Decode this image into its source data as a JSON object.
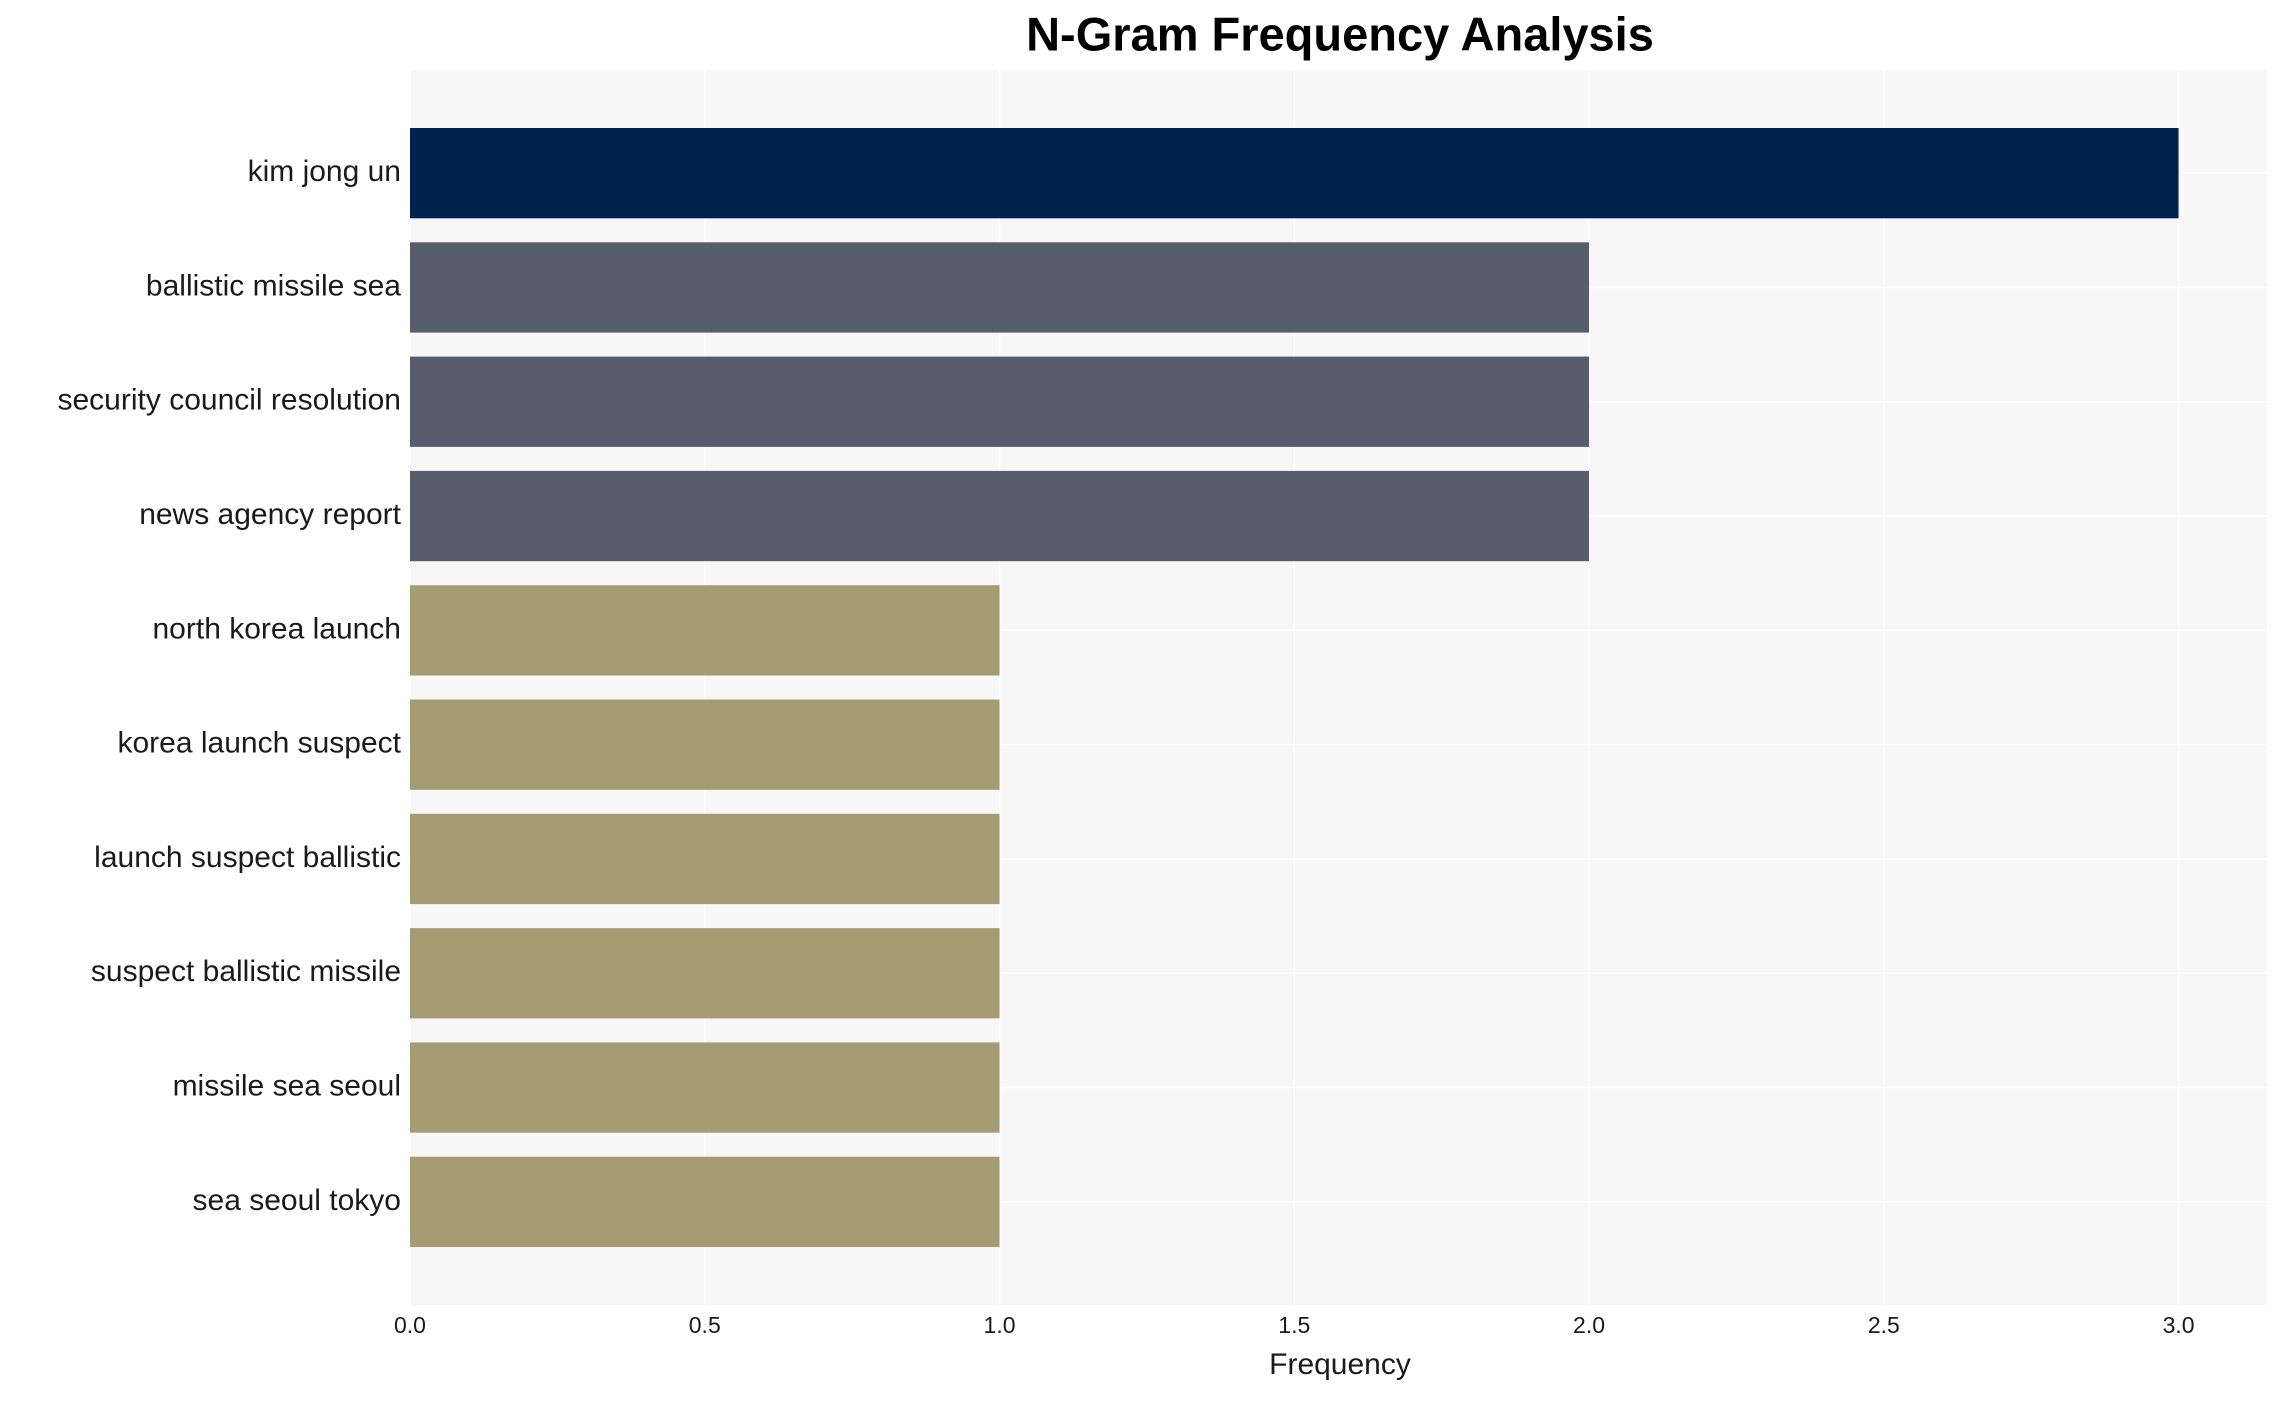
{
  "chart_data": {
    "type": "barh",
    "title": "N-Gram Frequency Analysis",
    "xlabel": "Frequency",
    "categories": [
      "kim jong un",
      "ballistic missile sea",
      "security council resolution",
      "news agency report",
      "north korea launch",
      "korea launch suspect",
      "launch suspect ballistic",
      "suspect ballistic missile",
      "missile sea seoul",
      "sea seoul tokyo"
    ],
    "values": [
      3,
      2,
      2,
      2,
      1,
      1,
      1,
      1,
      1,
      1
    ],
    "colors": [
      "#00224e",
      "#575d6d",
      "#575d6d",
      "#575d6d",
      "#a59c74",
      "#a59c74",
      "#a59c74",
      "#a59c74",
      "#a59c74",
      "#a59c74"
    ],
    "xlim": [
      0,
      3.15
    ],
    "xticks": [
      {
        "value": 0,
        "label": "0.0"
      },
      {
        "value": 0.5,
        "label": "0.5"
      },
      {
        "value": 1,
        "label": "1.0"
      },
      {
        "value": 1.5,
        "label": "1.5"
      },
      {
        "value": 2,
        "label": "2.0"
      },
      {
        "value": 2.5,
        "label": "2.5"
      },
      {
        "value": 3,
        "label": "3.0"
      }
    ],
    "grid": true
  }
}
